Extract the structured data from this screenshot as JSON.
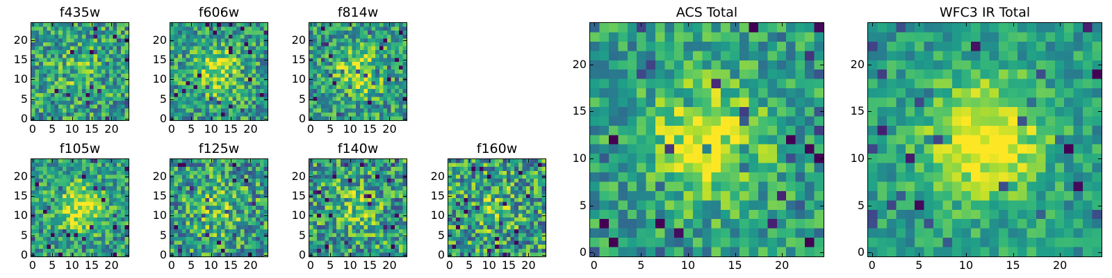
{
  "colormap": "viridis",
  "panels": [
    {
      "id": "f435w",
      "title": "f435w",
      "seed": 435,
      "blob": 0.15,
      "noise": 0.6,
      "x_ticks": [
        "0",
        "5",
        "10",
        "15",
        "20"
      ],
      "y_ticks": [
        "0",
        "5",
        "10",
        "15",
        "20"
      ]
    },
    {
      "id": "f606w",
      "title": "f606w",
      "seed": 606,
      "blob": 0.35,
      "noise": 0.55,
      "x_ticks": [
        "0",
        "5",
        "10",
        "15",
        "20"
      ],
      "y_ticks": [
        "0",
        "5",
        "10",
        "15",
        "20"
      ]
    },
    {
      "id": "f814w",
      "title": "f814w",
      "seed": 814,
      "blob": 0.35,
      "noise": 0.55,
      "x_ticks": [
        "0",
        "5",
        "10",
        "15",
        "20"
      ],
      "y_ticks": [
        "0",
        "5",
        "10",
        "15",
        "20"
      ]
    },
    {
      "id": "f105w",
      "title": "f105w",
      "seed": 105,
      "blob": 0.4,
      "noise": 0.5,
      "x_ticks": [
        "0",
        "5",
        "10",
        "15",
        "20"
      ],
      "y_ticks": [
        "0",
        "5",
        "10",
        "15",
        "20"
      ]
    },
    {
      "id": "f125w",
      "title": "f125w",
      "seed": 125,
      "blob": 0.2,
      "noise": 0.65,
      "x_ticks": [
        "0",
        "5",
        "10",
        "15",
        "20"
      ],
      "y_ticks": [
        "0",
        "5",
        "10",
        "15",
        "20"
      ]
    },
    {
      "id": "f140w",
      "title": "f140w",
      "seed": 140,
      "blob": 0.2,
      "noise": 0.65,
      "x_ticks": [
        "0",
        "5",
        "10",
        "15",
        "20"
      ],
      "y_ticks": [
        "0",
        "5",
        "10",
        "15",
        "20"
      ]
    },
    {
      "id": "f160w",
      "title": "f160w",
      "seed": 160,
      "blob": 0.15,
      "noise": 0.7,
      "x_ticks": [
        "0",
        "5",
        "10",
        "15",
        "20"
      ],
      "y_ticks": [
        "0",
        "5",
        "10",
        "15",
        "20"
      ]
    },
    {
      "id": "acs-total",
      "title": "ACS Total",
      "seed": 2001,
      "blob": 0.4,
      "noise": 0.45,
      "x_ticks": [
        "0",
        "5",
        "10",
        "15",
        "20"
      ],
      "y_ticks": [
        "0",
        "5",
        "10",
        "15",
        "20"
      ]
    },
    {
      "id": "wfc3-ir-total",
      "title": "WFC3 IR Total",
      "seed": 3001,
      "blob": 0.5,
      "noise": 0.35,
      "x_ticks": [
        "0",
        "5",
        "10",
        "15",
        "20"
      ],
      "y_ticks": [
        "0",
        "5",
        "10",
        "15",
        "20"
      ]
    }
  ]
}
